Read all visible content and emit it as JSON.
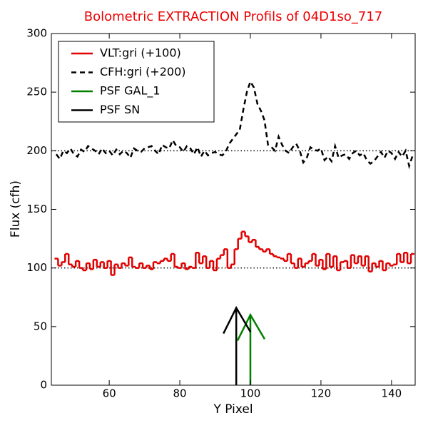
{
  "chart_data": {
    "type": "line",
    "title": "Bolometric EXTRACTION Profils of 04D1so_717",
    "x_label": "Y Pixel",
    "y_label": "Flux (cfh)",
    "xlim": [
      43.6,
      146.7
    ],
    "ylim": [
      0,
      300
    ],
    "xticks": [
      60,
      80,
      100,
      120,
      140
    ],
    "yticks": [
      0,
      50,
      100,
      150,
      200,
      250,
      300
    ],
    "x": [
      45,
      46,
      47,
      48,
      49,
      50,
      51,
      52,
      53,
      54,
      55,
      56,
      57,
      58,
      59,
      60,
      61,
      62,
      63,
      64,
      65,
      66,
      67,
      68,
      69,
      70,
      71,
      72,
      73,
      74,
      75,
      76,
      77,
      78,
      79,
      80,
      81,
      82,
      83,
      84,
      85,
      86,
      87,
      88,
      89,
      90,
      91,
      92,
      93,
      94,
      95,
      96,
      97,
      98,
      99,
      100,
      101,
      102,
      103,
      104,
      105,
      106,
      107,
      108,
      109,
      110,
      111,
      112,
      113,
      114,
      115,
      116,
      117,
      118,
      119,
      120,
      121,
      122,
      123,
      124,
      125,
      126,
      127,
      128,
      129,
      130,
      131,
      132,
      133,
      134,
      135,
      136,
      137,
      138,
      139,
      140,
      141,
      142,
      143,
      144,
      145,
      146
    ],
    "series": [
      {
        "name": "VLT:gri (+100)",
        "color": "#e00000",
        "style": "step",
        "values": [
          108,
          102,
          105,
          112,
          103,
          101,
          106,
          100,
          98,
          104,
          99,
          107,
          101,
          105,
          100,
          106,
          94,
          103,
          100,
          104,
          102,
          109,
          101,
          100,
          104,
          100,
          102,
          99,
          105,
          104,
          106,
          108,
          106,
          112,
          101,
          100,
          104,
          99,
          101,
          100,
          113,
          104,
          110,
          100,
          106,
          98,
          108,
          111,
          116,
          100,
          103,
          116,
          125,
          131,
          127,
          122,
          124,
          118,
          116,
          114,
          116,
          112,
          110,
          109,
          108,
          106,
          112,
          104,
          100,
          108,
          101,
          104,
          106,
          112,
          102,
          107,
          99,
          112,
          101,
          110,
          98,
          105,
          106,
          100,
          111,
          104,
          110,
          102,
          110,
          97,
          104,
          101,
          106,
          98,
          104,
          102,
          103,
          112,
          105,
          113,
          104,
          112
        ]
      },
      {
        "name": "CFH:gri (+200)",
        "color": "#000000",
        "style": "dashed",
        "values": [
          197,
          193,
          200,
          198,
          202,
          197,
          195,
          201,
          199,
          204,
          202,
          200,
          197,
          202,
          198,
          200,
          196,
          201,
          197,
          200,
          198,
          194,
          202,
          200,
          199,
          202,
          203,
          204,
          200,
          197,
          205,
          203,
          202,
          209,
          204,
          203,
          199,
          204,
          202,
          197,
          203,
          195,
          200,
          196,
          198,
          199,
          197,
          196,
          199,
          206,
          210,
          214,
          218,
          235,
          250,
          259,
          254,
          240,
          234,
          226,
          205,
          203,
          200,
          212,
          205,
          200,
          198,
          203,
          206,
          200,
          190,
          194,
          203,
          201,
          200,
          202,
          192,
          195,
          191,
          204,
          194,
          196,
          197,
          193,
          198,
          200,
          196,
          198,
          192,
          189,
          191,
          195,
          199,
          194,
          200,
          198,
          193,
          199,
          195,
          200,
          187,
          196
        ]
      }
    ],
    "hlines": [
      100,
      200
    ],
    "arrows": [
      {
        "name": "PSF GAL_1",
        "color": "#008000",
        "x": 100,
        "y": 60
      },
      {
        "name": "PSF SN",
        "color": "#000000",
        "x": 96,
        "y": 66
      }
    ],
    "legend": "upper left"
  }
}
